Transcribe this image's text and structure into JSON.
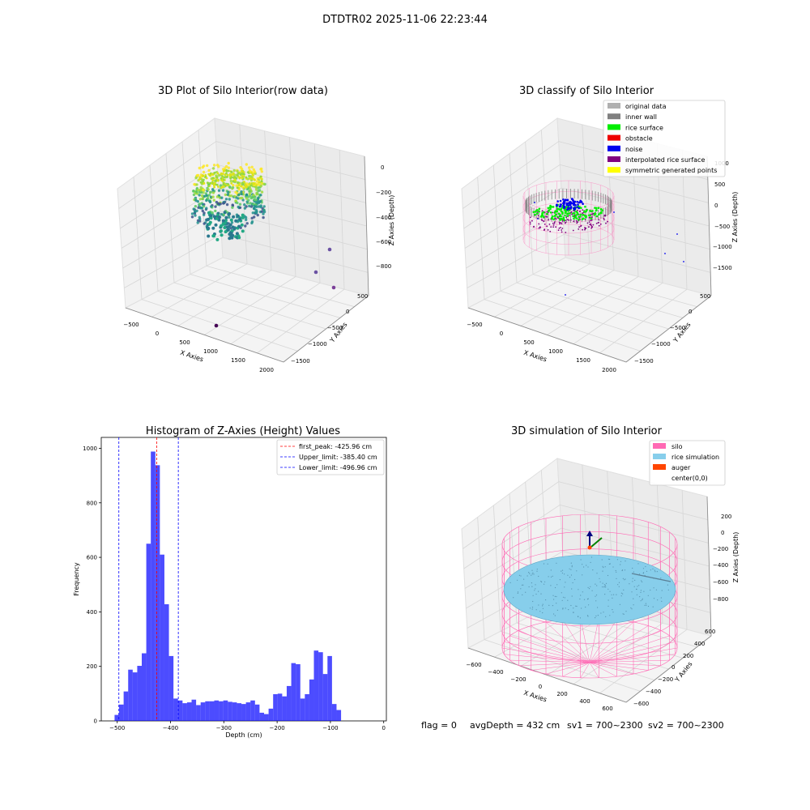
{
  "figure": {
    "suptitle": "DTDTR02 2025-11-06 22:23:44",
    "footer": {
      "flag": "flag = 0",
      "avg": "avgDepth = 432 cm",
      "sv1": "sv1 = 700~2300",
      "sv2": "sv2 = 700~2300"
    }
  },
  "chart_data": [
    {
      "type": "scatter",
      "projection": "3d",
      "title": "3D Plot of Silo Interior(row data)",
      "xlabel": "X Axies",
      "ylabel": "Y Axies",
      "zlabel": "Z Axies (Depth)",
      "xlim": [
        -600,
        2000
      ],
      "ylim": [
        -1600,
        700
      ],
      "zlim": [
        -900,
        50
      ],
      "x_ticks": [
        "−500",
        "0",
        "500",
        "1000",
        "1500",
        "2000"
      ],
      "y_ticks": [
        "500",
        "0",
        "−500",
        "−1000",
        "−1500"
      ],
      "z_ticks": [
        "0",
        "−200",
        "−400",
        "−600",
        "−800"
      ],
      "colormap": "viridis",
      "cluster": {
        "x_range": [
          -500,
          500
        ],
        "y_range": [
          -500,
          500
        ],
        "z_range": [
          -520,
          -30
        ]
      },
      "outliers": [
        {
          "x": 1150,
          "y": 150,
          "z": -560
        },
        {
          "x": 1050,
          "y": 0,
          "z": -760
        },
        {
          "x": 1350,
          "y": -300,
          "z": -600
        },
        {
          "x": 900,
          "y": -1400,
          "z": -850
        }
      ]
    },
    {
      "type": "scatter",
      "projection": "3d",
      "title": "3D classify of Silo Interior",
      "xlabel": "X Axies",
      "ylabel": "Y Axies",
      "zlabel": "Z Axies (Depth)",
      "xlim": [
        -600,
        2000
      ],
      "ylim": [
        -1600,
        700
      ],
      "zlim": [
        -1600,
        1100
      ],
      "x_ticks": [
        "−500",
        "0",
        "500",
        "1000",
        "1500",
        "2000"
      ],
      "y_ticks": [
        "500",
        "0",
        "−500",
        "−1000",
        "−1500"
      ],
      "z_ticks": [
        "1000",
        "500",
        "0",
        "−500",
        "−1000",
        "−1500"
      ],
      "legend_position": "top-right",
      "legend": [
        {
          "label": "original data",
          "color": "#b0b0b0"
        },
        {
          "label": "inner wall",
          "color": "#808080"
        },
        {
          "label": "rice surface",
          "color": "#00ee00"
        },
        {
          "label": "obstacle",
          "color": "#ee0000"
        },
        {
          "label": "noise",
          "color": "#0000ee"
        },
        {
          "label": "interpolated rice surface",
          "color": "#800080"
        },
        {
          "label": "symmetric generated points",
          "color": "#ffff00"
        }
      ]
    },
    {
      "type": "bar",
      "subtype": "histogram",
      "title": "Histogram of Z-Axies (Height) Values",
      "xlabel": "Depth (cm)",
      "ylabel": "Frequency",
      "xlim": [
        -530,
        5
      ],
      "ylim": [
        0,
        1040
      ],
      "x_ticks": [
        -500,
        -400,
        -300,
        -200,
        -100,
        0
      ],
      "y_ticks": [
        0,
        200,
        400,
        600,
        800,
        1000
      ],
      "bin_start": -505,
      "bin_width": 8.5,
      "values": [
        22,
        60,
        108,
        188,
        178,
        202,
        248,
        650,
        988,
        938,
        610,
        428,
        238,
        82,
        75,
        65,
        68,
        78,
        58,
        68,
        72,
        72,
        75,
        72,
        75,
        70,
        68,
        65,
        62,
        68,
        75,
        60,
        30,
        25,
        45,
        98,
        100,
        90,
        128,
        212,
        208,
        82,
        98,
        152,
        258,
        252,
        172,
        238,
        62,
        40
      ],
      "bar_color": "#0000ff",
      "bar_alpha": 0.7,
      "legend_position": "top-right",
      "lines": [
        {
          "label": "first_peak: -425.96 cm",
          "x": -425.96,
          "color": "#ff0000"
        },
        {
          "label": "Upper_limit: -385.40 cm",
          "x": -385.4,
          "color": "#0000ff"
        },
        {
          "label": "Lower_limit: -496.96 cm",
          "x": -496.96,
          "color": "#0000ff"
        }
      ]
    },
    {
      "type": "scatter",
      "projection": "3d",
      "title": "3D simulation of Silo Interior",
      "xlabel": "X Axies",
      "ylabel": "Y Axies",
      "zlabel": "Z Axies (Depth)",
      "xlim": [
        -700,
        700
      ],
      "ylim": [
        -700,
        700
      ],
      "zlim": [
        -900,
        350
      ],
      "x_ticks": [
        "−600",
        "−400",
        "−200",
        "0",
        "200",
        "400",
        "600"
      ],
      "y_ticks": [
        "600",
        "400",
        "200",
        "0",
        "−200",
        "−400",
        "−600"
      ],
      "z_ticks": [
        "200",
        "0",
        "−200",
        "−400",
        "−600",
        "−800"
      ],
      "legend_position": "top-right",
      "legend": [
        {
          "label": "silo",
          "color": "#ff69b4"
        },
        {
          "label": "rice simulation",
          "color": "#87ceeb"
        },
        {
          "label": "auger",
          "color": "#ff4500"
        },
        {
          "label": "center(0,0)",
          "color": ""
        }
      ],
      "rice_surface_depth": -432
    }
  ]
}
